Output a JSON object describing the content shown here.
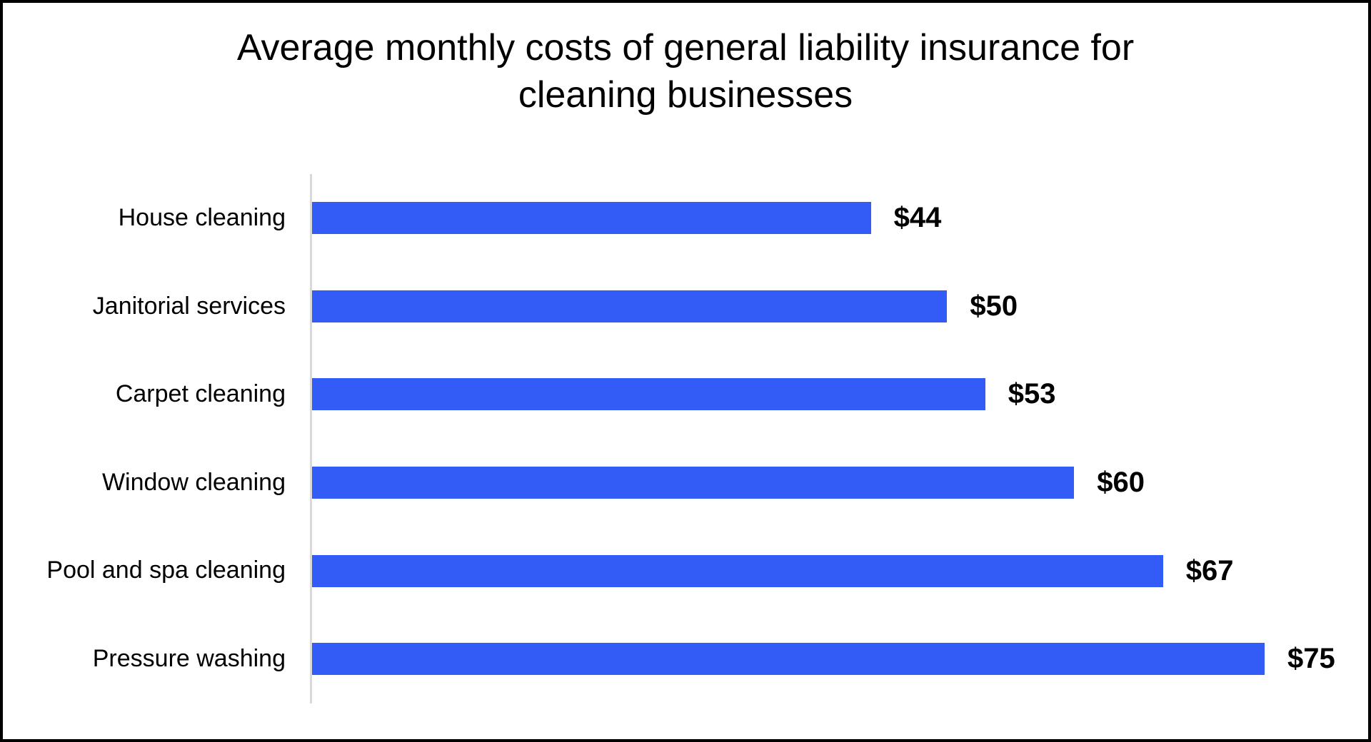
{
  "frame": {
    "background": "#ffffff",
    "border_color": "#000000"
  },
  "chart_data": {
    "type": "bar",
    "orientation": "horizontal",
    "title": "Average monthly costs of general liability insurance for\ncleaning businesses",
    "categories": [
      "House cleaning",
      "Janitorial services",
      "Carpet cleaning",
      "Window cleaning",
      "Pool and spa cleaning",
      "Pressure washing"
    ],
    "values": [
      44,
      50,
      53,
      60,
      67,
      75
    ],
    "value_labels": [
      "$44",
      "$50",
      "$53",
      "$60",
      "$67",
      "$75"
    ],
    "xlabel": "",
    "ylabel": "",
    "xlim": [
      0,
      83
    ],
    "grid": false,
    "legend": false,
    "bar_color": "#335CF6",
    "axis_line_color": "#D9D9D9",
    "data_label_position": "outside-end",
    "data_label_style": "bold"
  }
}
